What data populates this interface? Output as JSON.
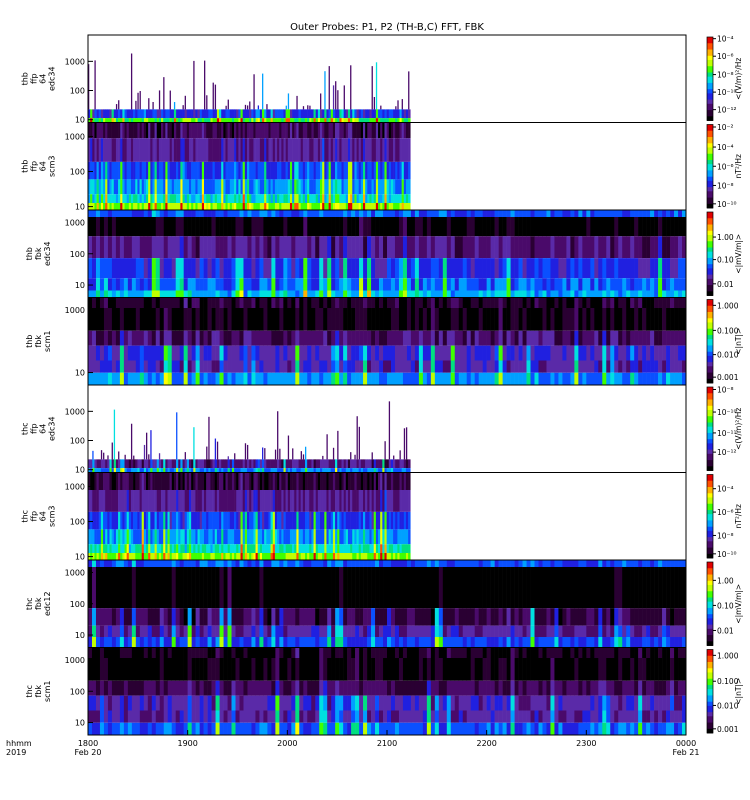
{
  "chart_data": {
    "type": "heatmap",
    "title": "Outer Probes: P1, P2 (TH-B,C) FFT, FBK",
    "x_axis": {
      "row_label_lines": [
        "hhmm",
        "2019"
      ],
      "ticks": [
        {
          "x": 0,
          "lines": [
            "1800",
            "Feb 20"
          ]
        },
        {
          "x": 60,
          "lines": [
            "1900"
          ]
        },
        {
          "x": 120,
          "lines": [
            "2000"
          ]
        },
        {
          "x": 180,
          "lines": [
            "2100"
          ]
        },
        {
          "x": 240,
          "lines": [
            "2200"
          ]
        },
        {
          "x": 300,
          "lines": [
            "2300"
          ]
        },
        {
          "x": 360,
          "lines": [
            "0000",
            "Feb 21"
          ]
        }
      ],
      "range_minutes": [
        0,
        360
      ]
    },
    "panels": [
      {
        "ylabel": [
          "thb",
          "ffp",
          "64",
          "edc34"
        ],
        "yscale": "log",
        "ylim": [
          8,
          8000
        ],
        "yticks": [
          "10",
          "100",
          "1000"
        ],
        "cbar_label": "<(V/m)²/Hz",
        "cbar_scale": "log",
        "cbar_ticks": [
          {
            "t": 0.02,
            "label": "10⁻⁴"
          },
          {
            "t": 0.23,
            "label": "10⁻⁶"
          },
          {
            "t": 0.45,
            "label": "10⁻⁸"
          },
          {
            "t": 0.66,
            "label": "10⁻¹⁰"
          },
          {
            "t": 0.87,
            "label": "10⁻¹²"
          }
        ],
        "style": "ffp_e",
        "data_end_minute": 194
      },
      {
        "ylabel": [
          "thb",
          "ffp",
          "64",
          "scm3"
        ],
        "yscale": "log",
        "ylim": [
          8,
          2500
        ],
        "yticks": [
          "10",
          "100",
          "1000"
        ],
        "cbar_label": "nT²/Hz",
        "cbar_scale": "log",
        "cbar_ticks": [
          {
            "t": 0.03,
            "label": "10⁻²"
          },
          {
            "t": 0.27,
            "label": "10⁻⁴"
          },
          {
            "t": 0.5,
            "label": "10⁻⁶"
          },
          {
            "t": 0.73,
            "label": "10⁻⁸"
          },
          {
            "t": 0.95,
            "label": "10⁻¹⁰"
          }
        ],
        "style": "ffp_b",
        "data_end_minute": 194
      },
      {
        "ylabel": [
          "thb",
          "fbk",
          "edc34"
        ],
        "yscale": "log",
        "ylim": [
          4,
          2500
        ],
        "yticks": [
          "10",
          "100",
          "1000"
        ],
        "cbar_label": "<|mV/m|>",
        "cbar_scale": "log",
        "cbar_ticks": [
          {
            "t": 0.3,
            "label": "1.00"
          },
          {
            "t": 0.57,
            "label": "0.10"
          },
          {
            "t": 0.86,
            "label": "0.01"
          }
        ],
        "style": "fbk_e",
        "data_end_minute": 360
      },
      {
        "ylabel": [
          "thb",
          "fbk",
          "scm1"
        ],
        "yscale": "log",
        "ylim": [
          4,
          2500
        ],
        "yticks": [
          "10",
          "1000"
        ],
        "cbar_label": "<|nT|>",
        "cbar_scale": "log",
        "cbar_ticks": [
          {
            "t": 0.07,
            "label": "1.000"
          },
          {
            "t": 0.37,
            "label": "0.100"
          },
          {
            "t": 0.66,
            "label": "0.010"
          },
          {
            "t": 0.93,
            "label": "0.001"
          }
        ],
        "style": "fbk_b",
        "data_end_minute": 360
      },
      {
        "ylabel": [
          "thc",
          "ffp",
          "64",
          "edc34"
        ],
        "yscale": "log",
        "ylim": [
          8,
          8000
        ],
        "yticks": [
          "10",
          "100",
          "1000"
        ],
        "cbar_label": "<(V/m)²/Hz",
        "cbar_scale": "log",
        "cbar_ticks": [
          {
            "t": 0.03,
            "label": "10⁻⁸"
          },
          {
            "t": 0.3,
            "label": "10⁻¹⁰"
          },
          {
            "t": 0.55,
            "label": "10⁻¹¹"
          },
          {
            "t": 0.78,
            "label": "10⁻¹²"
          }
        ],
        "style": "ffp_e2",
        "data_end_minute": 194
      },
      {
        "ylabel": [
          "thc",
          "ffp",
          "64",
          "scm3"
        ],
        "yscale": "log",
        "ylim": [
          8,
          2500
        ],
        "yticks": [
          "10",
          "100",
          "1000"
        ],
        "cbar_label": "nT²/Hz",
        "cbar_scale": "log",
        "cbar_ticks": [
          {
            "t": 0.17,
            "label": "10⁻⁴"
          },
          {
            "t": 0.45,
            "label": "10⁻⁶"
          },
          {
            "t": 0.73,
            "label": "10⁻⁸"
          },
          {
            "t": 0.95,
            "label": "10⁻¹⁰"
          }
        ],
        "style": "ffp_b2",
        "data_end_minute": 194
      },
      {
        "ylabel": [
          "thc",
          "fbk",
          "edc12"
        ],
        "yscale": "log",
        "ylim": [
          4,
          2500
        ],
        "yticks": [
          "10",
          "100",
          "1000"
        ],
        "cbar_label": "<|mV/m|>",
        "cbar_scale": "log",
        "cbar_ticks": [
          {
            "t": 0.22,
            "label": "1.00"
          },
          {
            "t": 0.52,
            "label": "0.10"
          },
          {
            "t": 0.82,
            "label": "0.01"
          }
        ],
        "style": "fbk_e2",
        "data_end_minute": 360
      },
      {
        "ylabel": [
          "thc",
          "fbk",
          "scm1"
        ],
        "yscale": "log",
        "ylim": [
          4,
          2500
        ],
        "yticks": [
          "10",
          "100",
          "1000"
        ],
        "cbar_label": "<|nT|>",
        "cbar_scale": "log",
        "cbar_ticks": [
          {
            "t": 0.07,
            "label": "1.000"
          },
          {
            "t": 0.38,
            "label": "0.100"
          },
          {
            "t": 0.67,
            "label": "0.010"
          },
          {
            "t": 0.95,
            "label": "0.001"
          }
        ],
        "style": "fbk_b2",
        "data_end_minute": 360
      }
    ],
    "colormap": [
      "#000000",
      "#2a0033",
      "#4a0a6a",
      "#5a2aa8",
      "#2020e0",
      "#0a50ff",
      "#00a0ff",
      "#00e0e0",
      "#00e080",
      "#40ff00",
      "#c0ff00",
      "#ffff00",
      "#ffb000",
      "#ff5000",
      "#e00000"
    ]
  }
}
